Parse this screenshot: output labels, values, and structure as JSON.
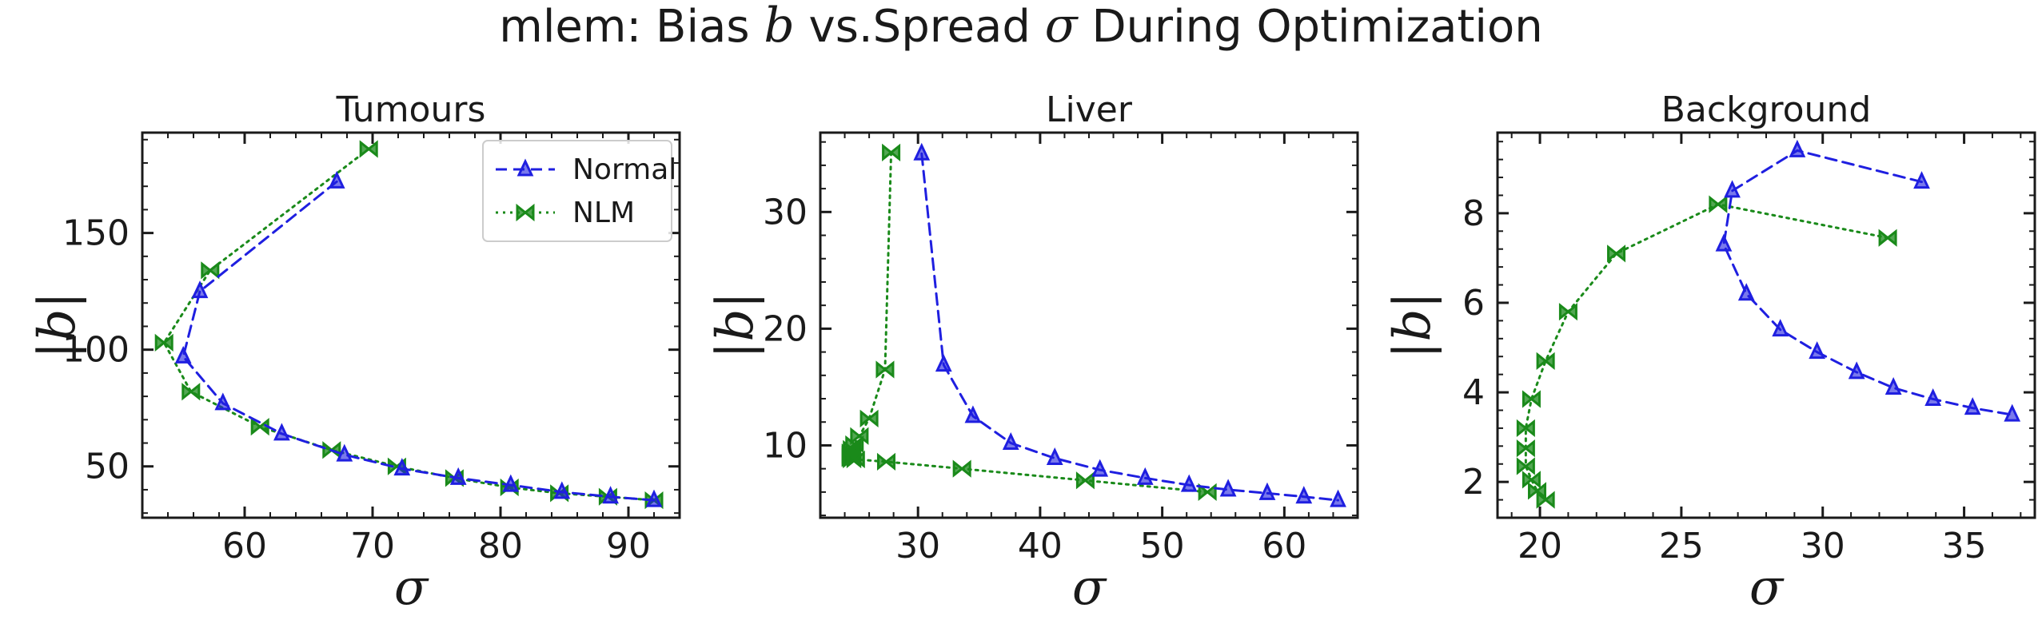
{
  "title": {
    "prefix": "mlem: Bias ",
    "b": "b",
    "middle": " vs.Spread ",
    "sigma": "σ",
    "suffix": " During Optimization"
  },
  "colors": {
    "normal": "#1f1fe0",
    "nlm": "#1a8a1a"
  },
  "chart_data": [
    {
      "type": "line",
      "title": "Tumours",
      "xlabel": "σ",
      "ylabel": "|b|",
      "xlim": [
        52,
        94
      ],
      "ylim": [
        28,
        193
      ],
      "xticks": [
        60,
        70,
        80,
        90
      ],
      "yticks": [
        50,
        100,
        150
      ],
      "legend": "top-right",
      "series": [
        {
          "name": "Normal",
          "style": "dashed",
          "marker": "triangle",
          "x": [
            67.2,
            56.5,
            55.2,
            58.3,
            62.9,
            67.8,
            72.3,
            76.7,
            80.8,
            84.8,
            88.6,
            92.0
          ],
          "y": [
            172,
            125,
            97,
            77,
            64,
            55,
            49,
            45,
            42,
            39,
            37,
            35.5
          ]
        },
        {
          "name": "NLM",
          "style": "dotted",
          "marker": "bowtie",
          "x": [
            69.7,
            57.3,
            53.7,
            55.8,
            61.2,
            66.8,
            71.9,
            76.4,
            80.7,
            84.6,
            88.4,
            92.0
          ],
          "y": [
            186,
            134,
            103,
            82,
            67,
            57,
            50,
            45,
            41,
            38.5,
            37,
            35.5
          ]
        }
      ]
    },
    {
      "type": "line",
      "title": "Liver",
      "xlabel": "σ",
      "ylabel": "|b|",
      "xlim": [
        22,
        66
      ],
      "ylim": [
        3.8,
        36.8
      ],
      "xticks": [
        30,
        40,
        50,
        60
      ],
      "yticks": [
        10,
        20,
        30
      ],
      "series": [
        {
          "name": "Normal",
          "style": "dashed",
          "marker": "triangle",
          "x": [
            30.3,
            32.1,
            34.5,
            37.6,
            41.2,
            44.9,
            48.6,
            52.2,
            55.4,
            58.6,
            61.6,
            64.4
          ],
          "y": [
            35.0,
            16.9,
            12.5,
            10.2,
            8.9,
            7.9,
            7.2,
            6.6,
            6.2,
            5.9,
            5.6,
            5.3
          ]
        },
        {
          "name": "NLM",
          "style": "dotted",
          "marker": "bowtie",
          "x": [
            27.8,
            27.3,
            26.0,
            25.2,
            24.8,
            24.6,
            24.5,
            24.5,
            24.5,
            24.5,
            24.6,
            24.9,
            27.4,
            33.6,
            43.7,
            53.7
          ],
          "y": [
            35.1,
            16.5,
            12.3,
            10.8,
            10.1,
            9.7,
            9.4,
            9.2,
            9.0,
            8.9,
            8.8,
            8.8,
            8.6,
            8.0,
            7.0,
            6.0
          ]
        }
      ]
    },
    {
      "type": "line",
      "title": "Background",
      "xlabel": "σ",
      "ylabel": "|b|",
      "xlim": [
        18.5,
        37.5
      ],
      "ylim": [
        1.2,
        9.8
      ],
      "xticks": [
        20,
        25,
        30,
        35
      ],
      "yticks": [
        2,
        4,
        6,
        8
      ],
      "series": [
        {
          "name": "Normal",
          "style": "dashed",
          "marker": "triangle",
          "x": [
            33.5,
            29.1,
            26.8,
            26.5,
            27.3,
            28.5,
            29.8,
            31.2,
            32.5,
            33.9,
            35.3,
            36.7
          ],
          "y": [
            8.7,
            9.4,
            8.5,
            7.3,
            6.2,
            5.4,
            4.9,
            4.45,
            4.1,
            3.85,
            3.65,
            3.5
          ]
        },
        {
          "name": "NLM",
          "style": "dotted",
          "marker": "bowtie",
          "x": [
            32.3,
            26.3,
            22.7,
            21.0,
            20.2,
            19.7,
            19.5,
            19.5,
            19.5,
            19.7,
            19.9,
            20.2
          ],
          "y": [
            7.45,
            8.2,
            7.1,
            5.8,
            4.7,
            3.85,
            3.2,
            2.75,
            2.35,
            2.05,
            1.8,
            1.6
          ]
        }
      ]
    }
  ]
}
